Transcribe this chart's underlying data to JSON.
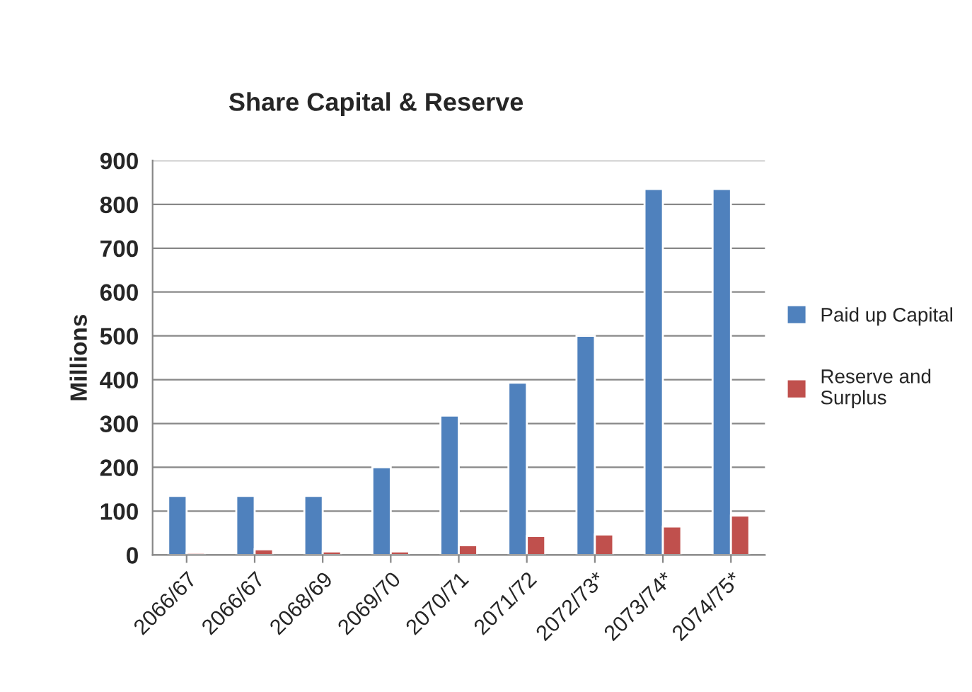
{
  "chart_data": {
    "type": "bar",
    "title": "Share Capital & Reserve",
    "ylabel": "Millions",
    "categories": [
      "2066/67",
      "2066/67",
      "2068/69",
      "2069/70",
      "2070/71",
      "2071/72",
      "2072/73*",
      "2073/74*",
      "2074/75*"
    ],
    "series": [
      {
        "name": "Paid up Capital",
        "color": "#4f81bd",
        "values": [
          135,
          135,
          135,
          200,
          318,
          393,
          500,
          835,
          835
        ]
      },
      {
        "name": "Reserve and\nSurplus",
        "color": "#c0504d",
        "values": [
          5,
          13,
          8,
          8,
          22,
          43,
          47,
          65,
          90
        ]
      }
    ],
    "ylim": [
      0,
      900
    ],
    "yticks": [
      0,
      100,
      200,
      300,
      400,
      500,
      600,
      700,
      800,
      900
    ],
    "grid": "y",
    "legend": "right"
  }
}
